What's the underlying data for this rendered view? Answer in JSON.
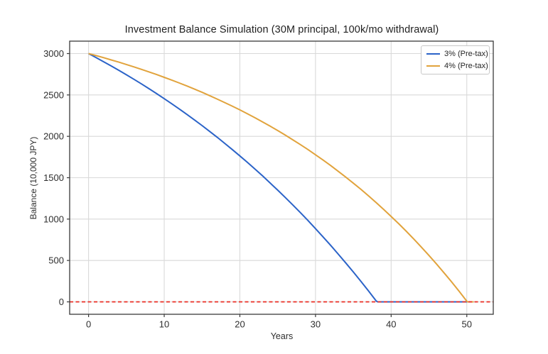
{
  "chart_data": {
    "type": "line",
    "title": "Investment Balance Simulation (30M principal, 100k/mo withdrawal)",
    "xlabel": "Years",
    "ylabel": "Balance (10,000 JPY)",
    "xlim": [
      -2.5,
      53.5
    ],
    "ylim": [
      -150,
      3150
    ],
    "xticks": [
      0,
      10,
      20,
      30,
      40,
      50
    ],
    "yticks": [
      0,
      500,
      1000,
      1500,
      2000,
      2500,
      3000
    ],
    "grid": true,
    "legend_position": "upper right",
    "series": [
      {
        "name": "3% (Pre-tax)",
        "color": "#2b63c8",
        "style": "solid",
        "width": 2,
        "legend": true,
        "points": [
          [
            0,
            3000
          ],
          [
            1,
            2951
          ],
          [
            2,
            2901
          ],
          [
            3,
            2850
          ],
          [
            4,
            2798
          ],
          [
            5,
            2744
          ],
          [
            6,
            2689
          ],
          [
            7,
            2633
          ],
          [
            8,
            2575
          ],
          [
            9,
            2516
          ],
          [
            10,
            2455
          ],
          [
            11,
            2393
          ],
          [
            12,
            2330
          ],
          [
            13,
            2265
          ],
          [
            14,
            2198
          ],
          [
            15,
            2130
          ],
          [
            16,
            2060
          ],
          [
            17,
            1989
          ],
          [
            18,
            1915
          ],
          [
            19,
            1840
          ],
          [
            20,
            1763
          ],
          [
            21,
            1685
          ],
          [
            22,
            1604
          ],
          [
            23,
            1522
          ],
          [
            24,
            1437
          ],
          [
            25,
            1350
          ],
          [
            26,
            1262
          ],
          [
            27,
            1171
          ],
          [
            28,
            1078
          ],
          [
            29,
            983
          ],
          [
            30,
            885
          ],
          [
            31,
            785
          ],
          [
            32,
            683
          ],
          [
            33,
            578
          ],
          [
            34,
            470
          ],
          [
            35,
            361
          ],
          [
            36,
            248
          ],
          [
            37,
            133
          ],
          [
            38,
            14
          ],
          [
            38.2,
            0
          ],
          [
            39,
            0
          ],
          [
            45,
            0
          ],
          [
            50.9,
            0
          ]
        ]
      },
      {
        "name": "4% (Pre-tax)",
        "color": "#e1a33c",
        "style": "solid",
        "width": 2,
        "legend": true,
        "points": [
          [
            0,
            3000
          ],
          [
            1,
            2975
          ],
          [
            2,
            2950
          ],
          [
            3,
            2923
          ],
          [
            4,
            2896
          ],
          [
            5,
            2868
          ],
          [
            6,
            2839
          ],
          [
            7,
            2809
          ],
          [
            8,
            2778
          ],
          [
            9,
            2746
          ],
          [
            10,
            2713
          ],
          [
            11,
            2679
          ],
          [
            12,
            2644
          ],
          [
            13,
            2608
          ],
          [
            14,
            2571
          ],
          [
            15,
            2532
          ],
          [
            16,
            2492
          ],
          [
            17,
            2451
          ],
          [
            18,
            2408
          ],
          [
            19,
            2365
          ],
          [
            20,
            2319
          ],
          [
            21,
            2272
          ],
          [
            22,
            2224
          ],
          [
            23,
            2174
          ],
          [
            24,
            2123
          ],
          [
            25,
            2070
          ],
          [
            26,
            2015
          ],
          [
            27,
            1958
          ],
          [
            28,
            1900
          ],
          [
            29,
            1840
          ],
          [
            30,
            1777
          ],
          [
            31,
            1713
          ],
          [
            32,
            1647
          ],
          [
            33,
            1578
          ],
          [
            34,
            1507
          ],
          [
            35,
            1434
          ],
          [
            36,
            1359
          ],
          [
            37,
            1281
          ],
          [
            38,
            1201
          ],
          [
            39,
            1118
          ],
          [
            40,
            1032
          ],
          [
            41,
            944
          ],
          [
            42,
            853
          ],
          [
            43,
            758
          ],
          [
            44,
            661
          ],
          [
            45,
            561
          ],
          [
            46,
            457
          ],
          [
            47,
            350
          ],
          [
            48,
            240
          ],
          [
            49,
            126
          ],
          [
            50,
            8
          ],
          [
            50.1,
            0
          ],
          [
            50.9,
            0
          ]
        ]
      },
      {
        "name": "zero-balance-line",
        "color": "#ea2d24",
        "style": "dashed",
        "width": 1.8,
        "legend": false,
        "points": [
          [
            -2.5,
            0
          ],
          [
            53.5,
            0
          ]
        ]
      }
    ]
  },
  "colors": {
    "background": "#ffffff",
    "axis": "#3a3a3a",
    "grid": "#d9d9d9",
    "tick_text": "#2e2e2e",
    "legend_border": "#c8c8c8"
  }
}
